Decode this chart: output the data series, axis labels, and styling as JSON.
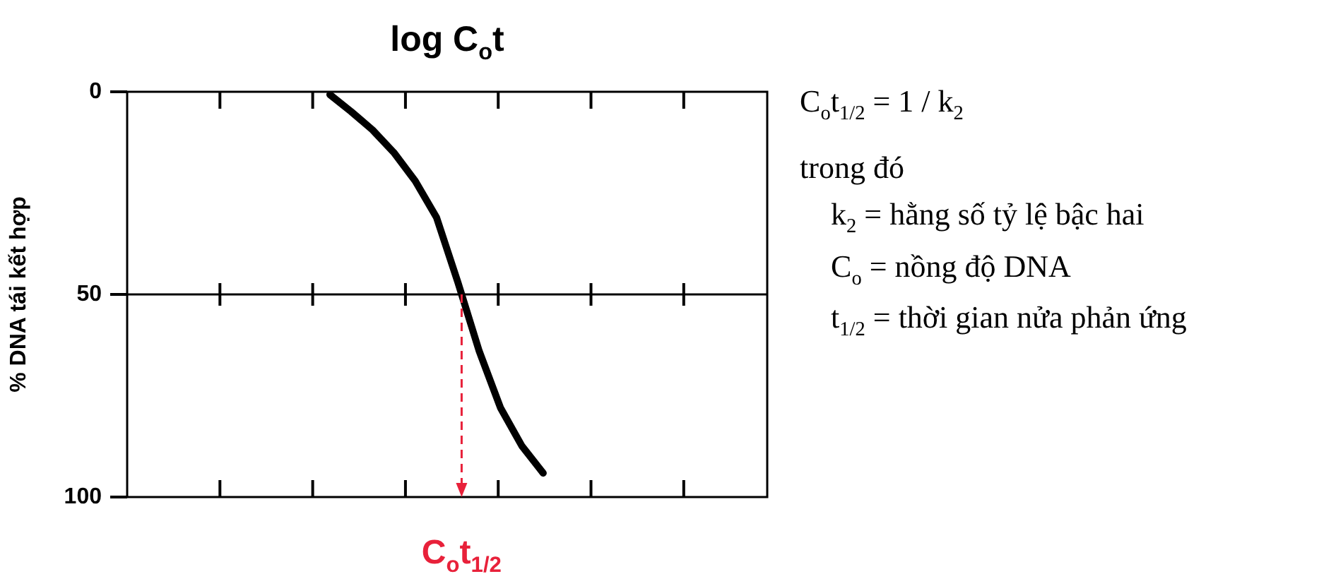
{
  "chart_data": {
    "type": "line",
    "xlabel": "log C$_{o}$t",
    "ylabel": "% DNA tái kết hợp",
    "categories": [
      null,
      null,
      null,
      null,
      null,
      null,
      null,
      null,
      null,
      null,
      null,
      null,
      null,
      null,
      null,
      null,
      null,
      null,
      null,
      null,
      null,
      null,
      null,
      null,
      null,
      null,
      null,
      null,
      null,
      null
    ],
    "series": [
      {
        "color": "#000000",
        "values": [
          null,
          null,
          null,
          null,
          null,
          null,
          null,
          null,
          null,
          0.7,
          4.9,
          9.4,
          15,
          22,
          31,
          47,
          64,
          78,
          87.4,
          94.1,
          null,
          null,
          null,
          null,
          null,
          null,
          null,
          null,
          null,
          null
        ]
      }
    ],
    "ylim": [
      100,
      0
    ],
    "yticks": [
      0,
      50,
      100
    ],
    "tick_labels": "y",
    "grid": false,
    "legend": false,
    "marker": "none",
    "line_style": "solid",
    "ref_lines": [
      {
        "axis": "y",
        "value": 50,
        "label": null,
        "color": "#000000",
        "line_style": "solid"
      }
    ],
    "annotations": [
      "C$_{o}$t$_{1/2}$ = 1 / k$_{2}$",
      "trong đó",
      "k$_{2}$ = hằng số tỷ lệ bậc hai",
      "C$_{o}$ = nồng độ DNA",
      "t$_{1/2}$ = thời gian nửa phản ứng",
      "C$_{o}$t$_{1/2}$"
    ]
  }
}
